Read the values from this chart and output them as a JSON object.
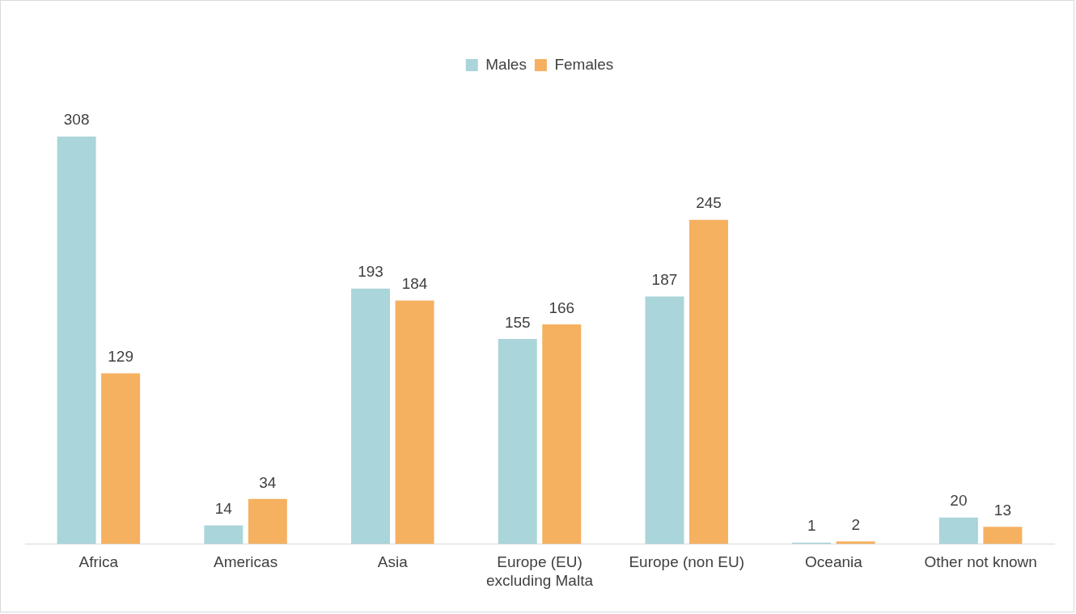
{
  "chart_data": {
    "type": "bar",
    "categories": [
      "Africa",
      "Americas",
      "Asia",
      "Europe (EU) excluding Malta",
      "Europe (non EU)",
      "Oceania",
      "Other not known"
    ],
    "series": [
      {
        "name": "Males",
        "color": "#aad5da",
        "values": [
          308,
          14,
          193,
          155,
          187,
          1,
          20
        ]
      },
      {
        "name": "Females",
        "color": "#f5b160",
        "values": [
          129,
          34,
          184,
          166,
          245,
          2,
          13
        ]
      }
    ],
    "data_labels": true,
    "legend": "top",
    "grid": false
  }
}
